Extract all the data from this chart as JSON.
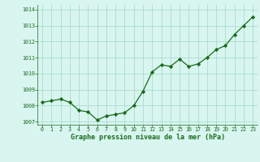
{
  "x": [
    0,
    1,
    2,
    3,
    4,
    5,
    6,
    7,
    8,
    9,
    10,
    11,
    12,
    13,
    14,
    15,
    16,
    17,
    18,
    19,
    20,
    21,
    22,
    23
  ],
  "y": [
    1008.2,
    1008.3,
    1008.4,
    1008.2,
    1007.7,
    1007.6,
    1007.1,
    1007.35,
    1007.45,
    1007.55,
    1008.0,
    1008.9,
    1010.1,
    1010.55,
    1010.45,
    1010.9,
    1010.45,
    1010.6,
    1011.0,
    1011.5,
    1011.75,
    1012.45,
    1013.0,
    1013.55
  ],
  "line_color": "#1a6b1a",
  "marker": "D",
  "marker_size": 2.2,
  "bg_color": "#d8f5f0",
  "grid_color": "#aaddcc",
  "xlabel": "Graphe pression niveau de la mer (hPa)",
  "xlabel_color": "#1a6b1a",
  "tick_color": "#1a6b1a",
  "ylim": [
    1006.8,
    1014.3
  ],
  "yticks": [
    1007,
    1008,
    1009,
    1010,
    1011,
    1012,
    1013,
    1014
  ],
  "xlim": [
    -0.5,
    23.5
  ],
  "xticks": [
    0,
    1,
    2,
    3,
    4,
    5,
    6,
    7,
    8,
    9,
    10,
    11,
    12,
    13,
    14,
    15,
    16,
    17,
    18,
    19,
    20,
    21,
    22,
    23
  ]
}
